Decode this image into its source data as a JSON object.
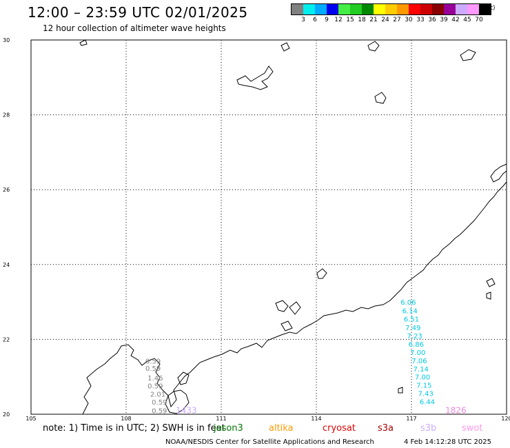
{
  "header": {
    "title": "12:00 – 23:59 UTC 02/01/2025",
    "subtitle": "12 hour collection of altimeter wave heights"
  },
  "legend": {
    "colors": [
      "#808080",
      "#00eeee",
      "#00aaff",
      "#0000ee",
      "#44ee44",
      "#22cc22",
      "#008800",
      "#ffff00",
      "#ffcc00",
      "#ff9900",
      "#ff0000",
      "#cc0000",
      "#880000",
      "#990099",
      "#ccaaff",
      "#ff99ff",
      "#000000"
    ],
    "labels": [
      "3",
      "6",
      "9",
      "12",
      "15",
      "18",
      "21",
      "24",
      "27",
      "30",
      "33",
      "36",
      "39",
      "42",
      "45",
      "70"
    ],
    "unit": "(ft)"
  },
  "map": {
    "lon_range": [
      105,
      120
    ],
    "lat_range": [
      20,
      30
    ],
    "lon_ticks": [
      "105",
      "108",
      "111",
      "114",
      "117",
      "120"
    ],
    "lat_ticks": [
      "30",
      "28",
      "26",
      "24",
      "22",
      "20"
    ]
  },
  "tracks": [
    {
      "satellite": "gray",
      "color": "#808080",
      "points": [
        {
          "lon": 108.85,
          "lat": 21.43,
          "label": "0.59"
        },
        {
          "lon": 108.85,
          "lat": 21.23,
          "label": "0.59"
        },
        {
          "lon": 108.92,
          "lat": 20.98,
          "label": "1.46"
        },
        {
          "lon": 108.92,
          "lat": 20.76,
          "label": "0.59"
        },
        {
          "lon": 109.0,
          "lat": 20.54,
          "label": "2.01"
        },
        {
          "lon": 109.05,
          "lat": 20.33,
          "label": "0.59"
        },
        {
          "lon": 109.05,
          "lat": 20.1,
          "label": "0.59"
        }
      ]
    },
    {
      "satellite": "s3b",
      "color": "#ccaaff",
      "points": [
        {
          "lon": 109.9,
          "lat": 20.1,
          "label": "1433"
        }
      ]
    },
    {
      "satellite": "cyan",
      "color": "#00c8e0",
      "points": [
        {
          "lon": 116.9,
          "lat": 23.0,
          "label": "6.06"
        },
        {
          "lon": 116.95,
          "lat": 22.77,
          "label": "6.14"
        },
        {
          "lon": 117.0,
          "lat": 22.55,
          "label": "6.51"
        },
        {
          "lon": 117.05,
          "lat": 22.32,
          "label": "7.49"
        },
        {
          "lon": 117.1,
          "lat": 22.1,
          "label": "7.23"
        },
        {
          "lon": 117.15,
          "lat": 21.88,
          "label": "6.86"
        },
        {
          "lon": 117.2,
          "lat": 21.66,
          "label": "7.00"
        },
        {
          "lon": 117.25,
          "lat": 21.44,
          "label": "7.06"
        },
        {
          "lon": 117.3,
          "lat": 21.22,
          "label": "7.14"
        },
        {
          "lon": 117.35,
          "lat": 21.0,
          "label": "7.00"
        },
        {
          "lon": 117.4,
          "lat": 20.78,
          "label": "7.15"
        },
        {
          "lon": 117.45,
          "lat": 20.56,
          "label": "7.43"
        },
        {
          "lon": 117.5,
          "lat": 20.34,
          "label": "6.44"
        }
      ]
    },
    {
      "satellite": "swot",
      "color": "#ee88dd",
      "points": [
        {
          "lon": 118.4,
          "lat": 20.1,
          "label": "1826"
        }
      ]
    }
  ],
  "footer": {
    "note": "note:  1) Time is in UTC;  2) SWH is in feet",
    "satellites": [
      {
        "name": "jason3",
        "color": "#007700"
      },
      {
        "name": "altika",
        "color": "#ff9900"
      },
      {
        "name": "cryosat",
        "color": "#dd0000"
      },
      {
        "name": "s3a",
        "color": "#aa0000"
      },
      {
        "name": "s3b",
        "color": "#ccaaff"
      },
      {
        "name": "swot",
        "color": "#ff99ee"
      }
    ],
    "credit": "NOAA/NESDIS Center for Satellite Applications and Research",
    "timestamp": "4 Feb 14:12:28 UTC 2025"
  }
}
